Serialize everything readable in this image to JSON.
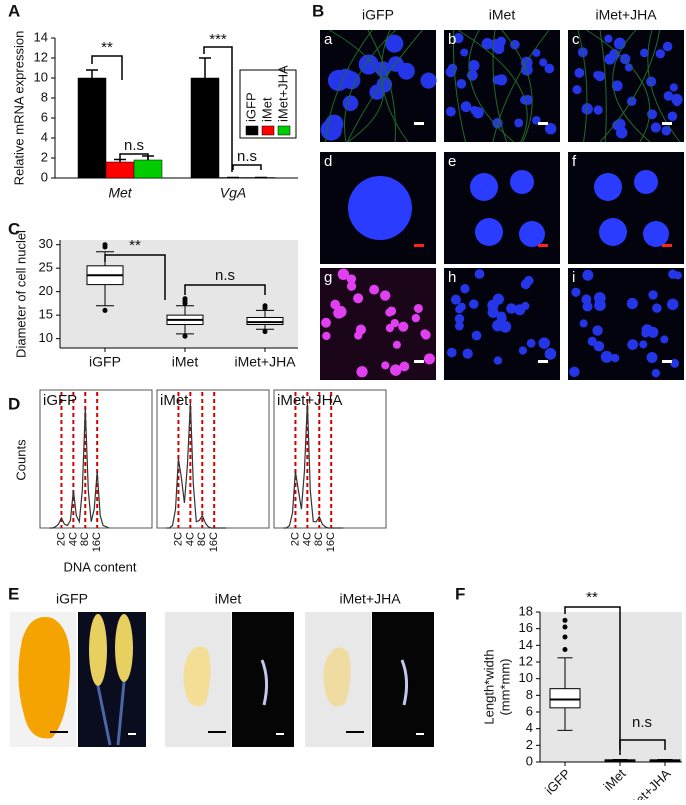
{
  "panel_labels": [
    "A",
    "B",
    "C",
    "D",
    "E",
    "F"
  ],
  "microscopy": {
    "columns": [
      "iGFP",
      "iMet",
      "iMet+JHA"
    ],
    "panels": [
      "a",
      "b",
      "c",
      "d",
      "e",
      "f",
      "g",
      "h",
      "i"
    ]
  },
  "photos": {
    "columns": [
      "iGFP",
      "iMet",
      "iMet+JHA"
    ]
  },
  "chart_data": [
    {
      "type": "bar",
      "ylabel": "Relative mRNA expression",
      "categories": [
        "Met",
        "VgA"
      ],
      "series": [
        {
          "name": "iGFP",
          "color": "#000000",
          "values": [
            10,
            10
          ],
          "errors": [
            0.8,
            2.0
          ]
        },
        {
          "name": "iMet",
          "color": "#ff0000",
          "values": [
            1.6,
            0.05
          ],
          "errors": [
            0.25,
            0
          ]
        },
        {
          "name": "iMet+JHA",
          "color": "#00cc00",
          "values": [
            1.8,
            0.05
          ],
          "errors": [
            0.4,
            0
          ]
        }
      ],
      "ylim": [
        0,
        14
      ],
      "yticks": [
        0,
        2,
        4,
        6,
        8,
        10,
        12,
        14
      ],
      "annotations": [
        "**",
        "***",
        "n.s",
        "n.s"
      ]
    },
    {
      "type": "box",
      "ylabel": "Diameter of cell nuclei",
      "categories": [
        "iGFP",
        "iMet",
        "iMet+JHA"
      ],
      "boxes": [
        {
          "whislo": 17,
          "q1": 21.5,
          "med": 23.5,
          "q3": 25.5,
          "whishi": 28.5,
          "fliers": [
            16,
            29.5,
            30
          ]
        },
        {
          "whislo": 11,
          "q1": 13,
          "med": 14,
          "q3": 15,
          "whishi": 17,
          "fliers": [
            10.5,
            17.5,
            18,
            18.5
          ]
        },
        {
          "whislo": 12,
          "q1": 13,
          "med": 13.5,
          "q3": 14.5,
          "whishi": 16,
          "fliers": [
            11.5,
            16.5,
            17
          ]
        }
      ],
      "ylim": [
        8,
        31
      ],
      "yticks": [
        10,
        15,
        20,
        25,
        30
      ],
      "color": "#e6e6e6",
      "annotations": [
        "**",
        "n.s"
      ]
    },
    {
      "type": "line",
      "xlabel": "DNA content",
      "ylabel": "Counts",
      "x": [
        0,
        0.25,
        0.5,
        0.75,
        1,
        1.25,
        1.5,
        1.75,
        2,
        2.25,
        2.5,
        2.75,
        3,
        3.25,
        3.5,
        3.75,
        4,
        4.25,
        4.5,
        4.75,
        5
      ],
      "series": [
        {
          "name": "iGFP",
          "color": "#333333",
          "values": [
            0,
            0,
            1,
            3,
            8,
            3,
            2,
            6,
            30,
            10,
            5,
            30,
            95,
            30,
            5,
            15,
            45,
            10,
            2,
            1,
            0
          ]
        },
        {
          "name": "iMet",
          "color": "#333333",
          "values": [
            0,
            0,
            2,
            15,
            55,
            40,
            20,
            50,
            100,
            35,
            5,
            6,
            10,
            4,
            1,
            0,
            0,
            0,
            0,
            0,
            0
          ]
        },
        {
          "name": "iMet+JHA",
          "color": "#333333",
          "values": [
            0,
            0,
            2,
            12,
            45,
            30,
            15,
            45,
            100,
            30,
            5,
            5,
            9,
            3,
            1,
            0,
            0,
            0,
            0,
            0,
            0
          ]
        }
      ],
      "xlim": [
        -0.8,
        8.6
      ],
      "ylim": [
        0,
        110
      ],
      "xticks": [
        {
          "value": 1,
          "label": "2C"
        },
        {
          "value": 2,
          "label": "4C"
        },
        {
          "value": 3,
          "label": "8C"
        },
        {
          "value": 4,
          "label": "16C"
        }
      ],
      "grid": true,
      "grid_color": "#d40000"
    },
    {
      "type": "box",
      "ylabel": [
        "Length*width",
        "(mm*mm)"
      ],
      "categories": [
        "iGFP",
        "iMet",
        "iMet+JHA"
      ],
      "boxes": [
        {
          "whislo": 3.8,
          "q1": 6.5,
          "med": 7.5,
          "q3": 8.8,
          "whishi": 12.5,
          "fliers": [
            13.5,
            15,
            16.2,
            17
          ]
        },
        {
          "whislo": 0.1,
          "q1": 0.15,
          "med": 0.2,
          "q3": 0.25,
          "whishi": 0.3,
          "fliers": []
        },
        {
          "whislo": 0.1,
          "q1": 0.15,
          "med": 0.2,
          "q3": 0.25,
          "whishi": 0.3,
          "fliers": []
        }
      ],
      "ylim": [
        0,
        18
      ],
      "yticks": [
        0,
        2,
        4,
        6,
        8,
        10,
        12,
        14,
        16,
        18
      ],
      "color": "#e6e6e6",
      "annotations": [
        "**",
        "n.s"
      ]
    }
  ]
}
